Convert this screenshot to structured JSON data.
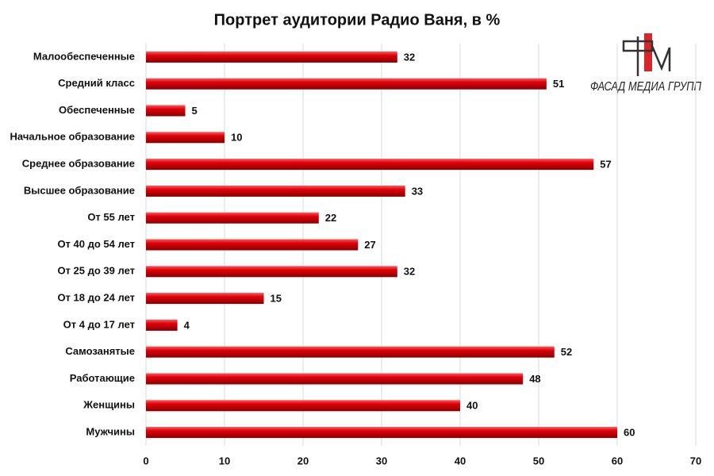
{
  "chart_data": {
    "type": "bar",
    "orientation": "horizontal",
    "title": "Портрет аудитории Радио Ваня, в %",
    "annotations": [
      "ФАСАД МЕДИА ГРУПП"
    ],
    "categories": [
      "Малообеспеченные",
      "Средний класс",
      "Обеспеченные",
      "Начальное образование",
      "Среднее образование",
      "Высшее образование",
      "От 55 лет",
      "От 40 до 54 лет",
      "От 25 до 39 лет",
      "От 18 до 24 лет",
      "От 4 до 17 лет",
      "Самозанятые",
      "Работающие",
      "Женщины",
      "Мужчины"
    ],
    "values": [
      32,
      51,
      5,
      10,
      57,
      33,
      22,
      27,
      32,
      15,
      4,
      52,
      48,
      40,
      60
    ],
    "color": "#e0000b",
    "xlim": [
      0,
      70
    ],
    "xticks": [
      0,
      10,
      20,
      30,
      40,
      50,
      60,
      70
    ],
    "grid": true
  }
}
